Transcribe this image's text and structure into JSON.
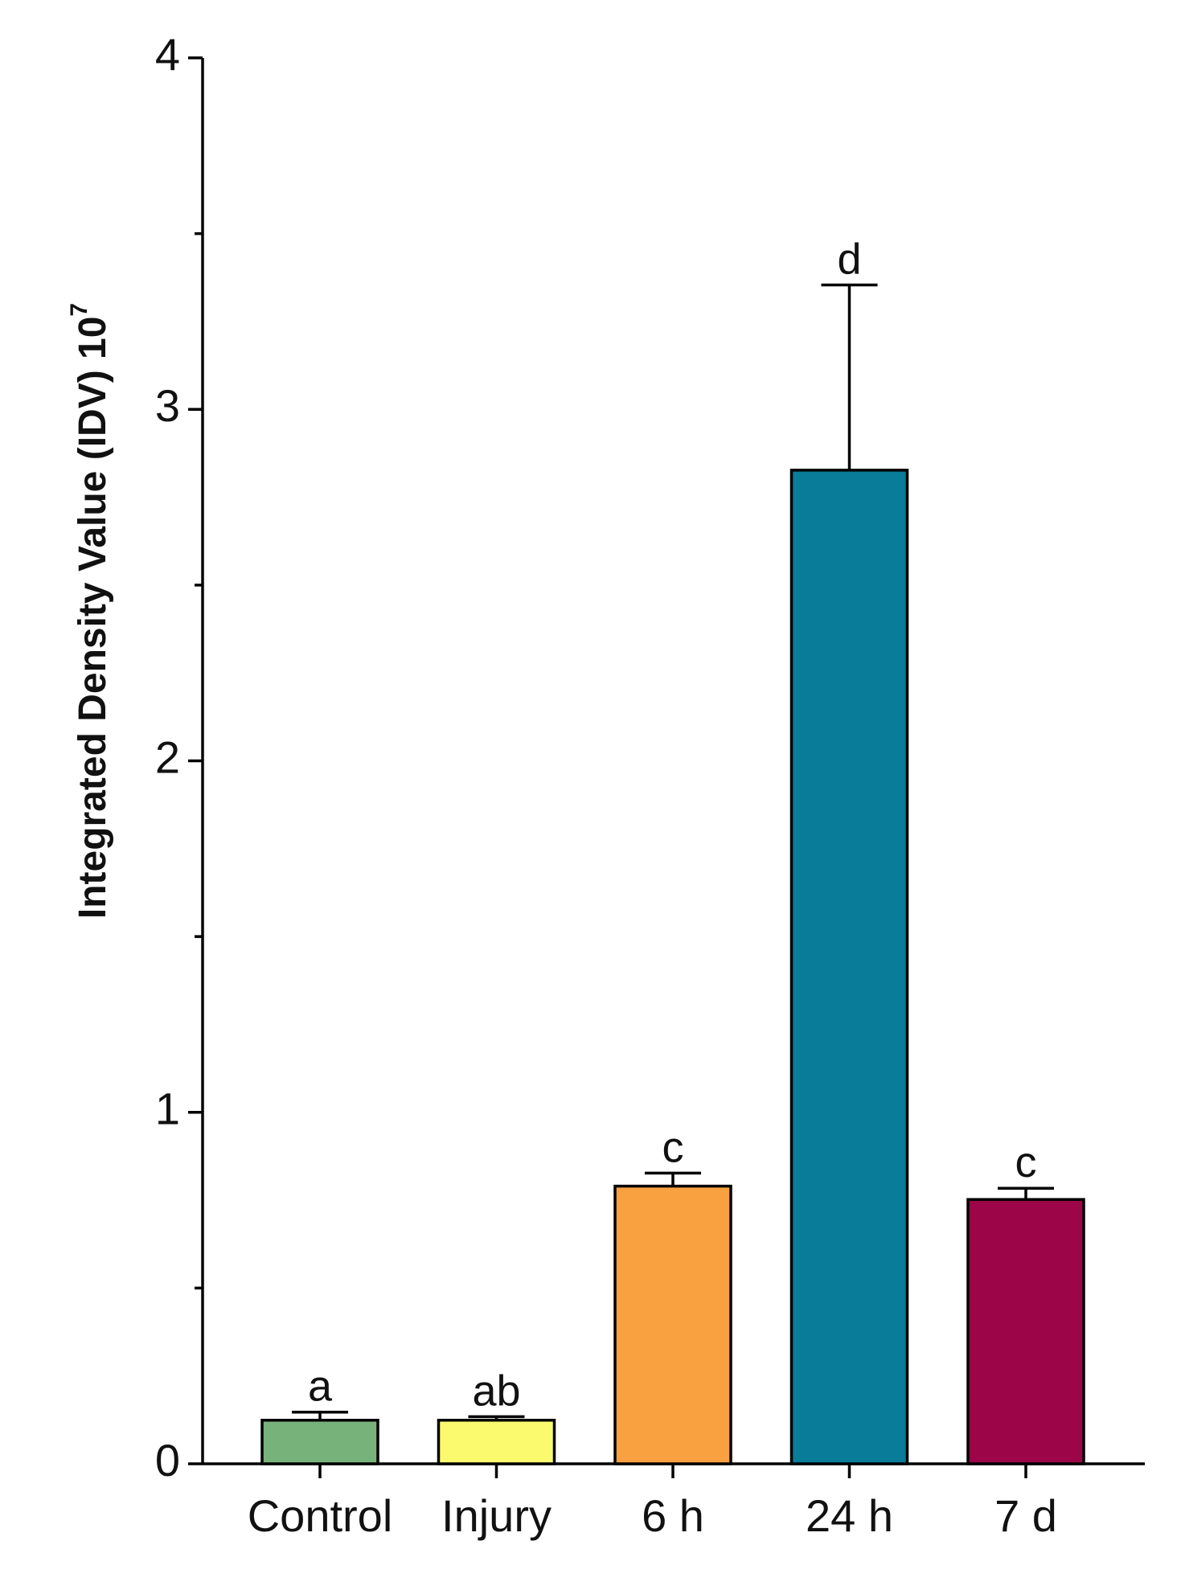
{
  "chart_data": {
    "type": "bar",
    "ylabel": "Integrated Density Value (IDV) 10",
    "ylabel_exponent": "7",
    "categories": [
      "Control",
      "Injury",
      "6 h",
      "24 h",
      "7 d"
    ],
    "values": [
      0.124,
      0.124,
      0.79,
      2.827,
      0.752
    ],
    "errors": [
      0.023,
      0.01,
      0.037,
      0.527,
      0.032
    ],
    "significance_labels": [
      "a",
      "ab",
      "c",
      "d",
      "c"
    ],
    "colors": [
      "#78b27b",
      "#fbfa6f",
      "#f9a040",
      "#087c98",
      "#9c0548"
    ],
    "ylim": [
      0,
      4
    ],
    "yticks": [
      0,
      1,
      2,
      3,
      4
    ],
    "yminor_ticks": [
      0.5,
      1.5,
      2.5,
      3.5
    ]
  }
}
